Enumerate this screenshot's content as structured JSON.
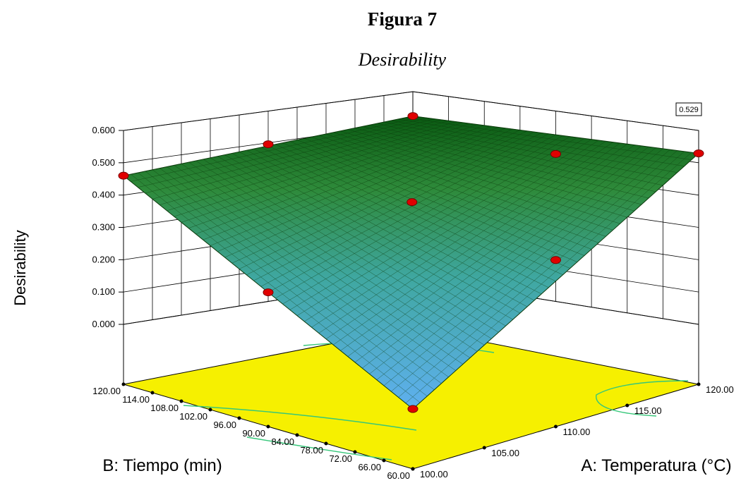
{
  "header": {
    "title": "Figura 7",
    "subtitle": "Desirability"
  },
  "chart_data": {
    "type": "surface3d",
    "zlabel": "Desirability",
    "xlabel": "A: Temperatura (°C)",
    "ylabel": "B: Tiempo (min)",
    "z_ticks": [
      "0.000",
      "0.100",
      "0.200",
      "0.300",
      "0.400",
      "0.500",
      "0.600"
    ],
    "x_ticks": [
      "100.00",
      "105.00",
      "110.00",
      "115.00",
      "120.00"
    ],
    "y_ticks": [
      "60.00",
      "66.00",
      "72.00",
      "78.00",
      "84.00",
      "90.00",
      "96.00",
      "102.00",
      "108.00",
      "114.00",
      "120.00"
    ],
    "zlim": [
      0,
      0.6
    ],
    "xlim": [
      100,
      120
    ],
    "ylim": [
      60,
      120
    ],
    "surface_corners": [
      {
        "temperatura": 100,
        "tiempo": 60,
        "desirability": 0.0
      },
      {
        "temperatura": 120,
        "tiempo": 60,
        "desirability": 0.529
      },
      {
        "temperatura": 100,
        "tiempo": 120,
        "desirability": 0.46
      },
      {
        "temperatura": 120,
        "tiempo": 120,
        "desirability": 0.47
      }
    ],
    "design_points": [
      {
        "temperatura": 100,
        "tiempo": 60,
        "desirability": 0.0
      },
      {
        "temperatura": 120,
        "tiempo": 60,
        "desirability": 0.529
      },
      {
        "temperatura": 100,
        "tiempo": 120,
        "desirability": 0.46
      },
      {
        "temperatura": 120,
        "tiempo": 120,
        "desirability": 0.47
      },
      {
        "temperatura": 110,
        "tiempo": 90,
        "desirability": 0.4
      },
      {
        "temperatura": 100,
        "tiempo": 90,
        "desirability": 0.23
      },
      {
        "temperatura": 120,
        "tiempo": 90,
        "desirability": 0.44
      },
      {
        "temperatura": 110,
        "tiempo": 60,
        "desirability": 0.33
      },
      {
        "temperatura": 110,
        "tiempo": 120,
        "desirability": 0.47
      }
    ],
    "annotation": "0.529",
    "colors": {
      "floor": "#f6f000",
      "surface_low": "#5fb0f0",
      "surface_high": "#0a5a12",
      "design_point": "#e00000",
      "contour": "#36c77a"
    }
  }
}
